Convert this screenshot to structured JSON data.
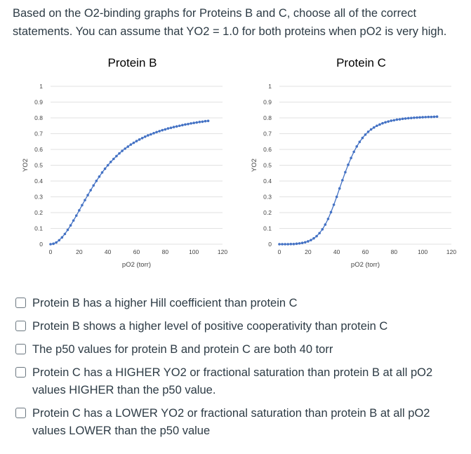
{
  "question": {
    "text": "Based on the O2-binding graphs for Proteins B and C, choose all of the correct statements. You can assume that YO2 = 1.0 for both proteins when pO2 is very high."
  },
  "chart_data": [
    {
      "type": "scatter",
      "title": "Protein B",
      "xlabel": "pO2 (torr)",
      "ylabel": "YO2",
      "xlim": [
        0,
        120
      ],
      "ylim": [
        0,
        1
      ],
      "xticks": [
        "0",
        "20",
        "40",
        "60",
        "80",
        "100",
        "120"
      ],
      "yticks": [
        "0",
        "0.1",
        "0.2",
        "0.3",
        "0.4",
        "0.5",
        "0.6",
        "0.7",
        "0.8",
        "0.9",
        "1"
      ],
      "grid": true,
      "marker_color": "#4472c4",
      "series": [
        {
          "x": [
            0,
            2,
            4,
            6,
            8,
            10,
            12,
            14,
            16,
            18,
            20,
            22,
            24,
            26,
            28,
            30,
            32,
            34,
            36,
            38,
            40,
            42,
            44,
            46,
            48,
            50,
            52,
            54,
            56,
            58,
            60,
            62,
            64,
            66,
            68,
            70,
            72,
            74,
            76,
            78,
            80,
            82,
            84,
            86,
            88,
            90,
            92,
            94,
            96,
            98,
            100,
            102,
            104,
            106,
            108,
            110
          ],
          "y": [
            0,
            0.003,
            0.011,
            0.025,
            0.043,
            0.065,
            0.091,
            0.119,
            0.15,
            0.181,
            0.214,
            0.247,
            0.279,
            0.311,
            0.342,
            0.372,
            0.401,
            0.428,
            0.454,
            0.478,
            0.5,
            0.521,
            0.54,
            0.558,
            0.575,
            0.591,
            0.605,
            0.618,
            0.631,
            0.642,
            0.653,
            0.663,
            0.672,
            0.681,
            0.689,
            0.696,
            0.703,
            0.71,
            0.716,
            0.722,
            0.727,
            0.733,
            0.737,
            0.742,
            0.746,
            0.75,
            0.754,
            0.758,
            0.761,
            0.765,
            0.768,
            0.771,
            0.774,
            0.776,
            0.779,
            0.781
          ]
        }
      ]
    },
    {
      "type": "scatter",
      "title": "Protein C",
      "xlabel": "pO2 (torr)",
      "ylabel": "YO2",
      "xlim": [
        0,
        120
      ],
      "ylim": [
        0,
        1
      ],
      "xticks": [
        "0",
        "20",
        "40",
        "60",
        "80",
        "100",
        "120"
      ],
      "yticks": [
        "0",
        "0.1",
        "0.2",
        "0.3",
        "0.4",
        "0.5",
        "0.6",
        "0.7",
        "0.8",
        "0.9",
        "1"
      ],
      "grid": true,
      "marker_color": "#4472c4",
      "series": [
        {
          "x": [
            0,
            2,
            4,
            6,
            8,
            10,
            12,
            14,
            16,
            18,
            20,
            22,
            24,
            26,
            28,
            30,
            32,
            34,
            36,
            38,
            40,
            42,
            44,
            46,
            48,
            50,
            52,
            54,
            56,
            58,
            60,
            62,
            64,
            66,
            68,
            70,
            72,
            74,
            76,
            78,
            80,
            82,
            84,
            86,
            88,
            90,
            92,
            94,
            96,
            98,
            100,
            102,
            104,
            106,
            108,
            110
          ],
          "y": [
            0,
            0,
            0,
            0,
            0.001,
            0.001,
            0.003,
            0.005,
            0.008,
            0.012,
            0.018,
            0.026,
            0.037,
            0.051,
            0.07,
            0.094,
            0.124,
            0.16,
            0.203,
            0.25,
            0.3,
            0.353,
            0.405,
            0.456,
            0.503,
            0.546,
            0.585,
            0.619,
            0.648,
            0.673,
            0.694,
            0.712,
            0.727,
            0.739,
            0.75,
            0.758,
            0.766,
            0.772,
            0.777,
            0.782,
            0.785,
            0.789,
            0.791,
            0.794,
            0.796,
            0.798,
            0.799,
            0.801,
            0.802,
            0.803,
            0.804,
            0.805,
            0.806,
            0.806,
            0.807,
            0.808
          ]
        }
      ]
    }
  ],
  "options": [
    {
      "text": "Protein B has a higher Hill coefficient than protein C"
    },
    {
      "text": "Protein B shows a higher level of positive cooperativity than protein C"
    },
    {
      "text": "The p50 values for protein B and protein C are both 40 torr"
    },
    {
      "text": "Protein C has a HIGHER YO2 or fractional saturation than protein B at all pO2 values HIGHER than the p50 value."
    },
    {
      "text": "Protein C has a LOWER YO2 or fractional saturation than protein B at all pO2 values LOWER than the p50 value"
    }
  ]
}
